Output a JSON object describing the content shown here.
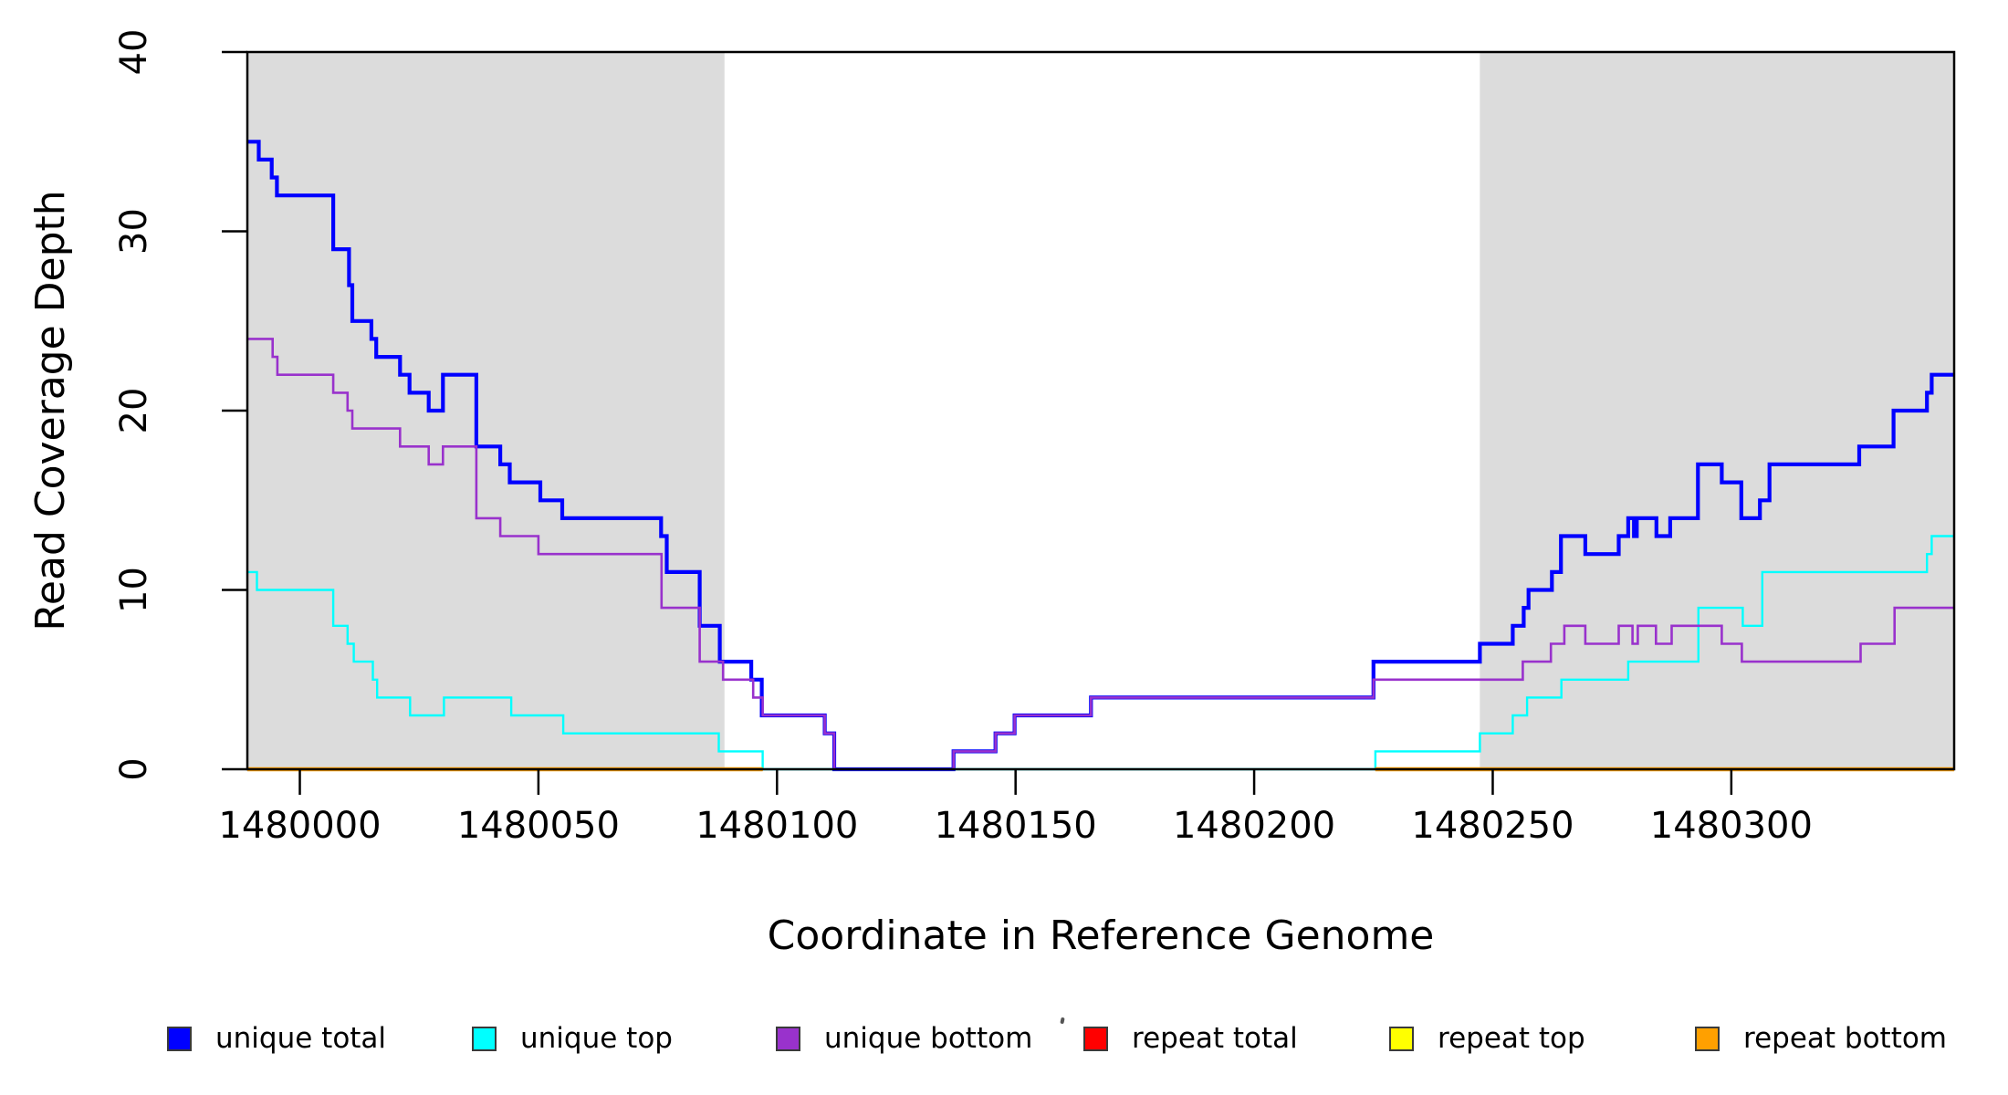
{
  "figure": {
    "background": "#ffffff",
    "shade_color": "#dcdcdc",
    "box_color": "#000000"
  },
  "axes": {
    "x_title": "Coordinate in Reference Genome",
    "y_title": "Read Coverage Depth",
    "x_ticks": [
      1480000,
      1480050,
      1480100,
      1480150,
      1480200,
      1480250,
      1480300
    ],
    "y_ticks": [
      0,
      10,
      20,
      30,
      40
    ],
    "xlim": [
      1479989,
      1480346.7
    ],
    "ylim": [
      0,
      40
    ]
  },
  "legend": {
    "items": [
      {
        "label": "unique total",
        "color": "#0000ff"
      },
      {
        "label": "unique top",
        "color": "#00ffff"
      },
      {
        "label": "unique bottom",
        "color": "#9932cc"
      },
      {
        "label": "repeat total",
        "color": "#ff0000"
      },
      {
        "label": "repeat top",
        "color": "#ffff00"
      },
      {
        "label": "repeat bottom",
        "color": "#ffa000"
      }
    ]
  },
  "chart_data": {
    "type": "line",
    "subtype": "step",
    "title": "",
    "xlabel": "Coordinate in Reference Genome",
    "ylabel": "Read Coverage Depth",
    "xlim": [
      1479989,
      1480346.7
    ],
    "ylim": [
      0,
      40
    ],
    "grid": false,
    "legend_position": "bottom",
    "shaded_regions": [
      {
        "x0": 1479989,
        "x1": 1480089,
        "color": "#dcdcdc"
      },
      {
        "x0": 1480247.3,
        "x1": 1480346.7,
        "color": "#dcdcdc"
      }
    ],
    "series": [
      {
        "name": "unique total",
        "color": "#0000ff",
        "width": 4.2,
        "steps": [
          [
            1479989,
            35
          ],
          [
            1479991.4,
            34
          ],
          [
            1479994.1,
            33
          ],
          [
            1479995.2,
            32
          ],
          [
            1480007,
            29
          ],
          [
            1480010.3,
            27
          ],
          [
            1480011,
            25
          ],
          [
            1480015,
            24
          ],
          [
            1480016,
            23
          ],
          [
            1480021,
            22
          ],
          [
            1480023,
            21
          ],
          [
            1480027,
            20
          ],
          [
            1480030,
            22
          ],
          [
            1480037,
            18
          ],
          [
            1480042,
            17
          ],
          [
            1480044,
            16
          ],
          [
            1480050.4,
            15
          ],
          [
            1480055,
            14
          ],
          [
            1480075.7,
            13
          ],
          [
            1480076.9,
            11
          ],
          [
            1480083.8,
            8
          ],
          [
            1480088,
            6
          ],
          [
            1480094.6,
            5
          ],
          [
            1480096.8,
            3
          ],
          [
            1480110,
            2
          ],
          [
            1480112,
            0
          ],
          [
            1480137,
            1
          ],
          [
            1480145.8,
            2
          ],
          [
            1480149.8,
            3
          ],
          [
            1480165.8,
            4
          ],
          [
            1480225,
            6
          ],
          [
            1480247.3,
            7
          ],
          [
            1480254.2,
            8
          ],
          [
            1480256.5,
            9
          ],
          [
            1480257.5,
            10
          ],
          [
            1480262.4,
            11
          ],
          [
            1480264.3,
            13
          ],
          [
            1480269.4,
            12
          ],
          [
            1480276.4,
            13
          ],
          [
            1480278.4,
            14
          ],
          [
            1480279.6,
            13
          ],
          [
            1480280.2,
            14
          ],
          [
            1480284.3,
            13
          ],
          [
            1480287.2,
            14
          ],
          [
            1480293,
            17
          ],
          [
            1480298,
            16
          ],
          [
            1480302.1,
            14
          ],
          [
            1480306,
            15
          ],
          [
            1480308,
            17
          ],
          [
            1480326.8,
            18
          ],
          [
            1480334,
            20
          ],
          [
            1480341,
            21
          ],
          [
            1480342,
            22
          ]
        ]
      },
      {
        "name": "unique top",
        "color": "#00ffff",
        "width": 2.4,
        "steps": [
          [
            1479989,
            11
          ],
          [
            1479991,
            10
          ],
          [
            1480007,
            8
          ],
          [
            1480010,
            7
          ],
          [
            1480011.3,
            6
          ],
          [
            1480015.3,
            5
          ],
          [
            1480016.2,
            4
          ],
          [
            1480023.1,
            3
          ],
          [
            1480030.2,
            4
          ],
          [
            1480044.3,
            3
          ],
          [
            1480055.2,
            2
          ],
          [
            1480087.8,
            1
          ],
          [
            1480097,
            0
          ],
          [
            1480225.4,
            1
          ],
          [
            1480247.3,
            2
          ],
          [
            1480254.2,
            3
          ],
          [
            1480257.2,
            4
          ],
          [
            1480264.4,
            5
          ],
          [
            1480278.4,
            6
          ],
          [
            1480293.1,
            9
          ],
          [
            1480302.4,
            8
          ],
          [
            1480306.5,
            11
          ],
          [
            1480341,
            12
          ],
          [
            1480342,
            13
          ]
        ]
      },
      {
        "name": "unique bottom",
        "color": "#9932cc",
        "width": 2.6,
        "steps": [
          [
            1479989,
            24
          ],
          [
            1479994.3,
            23
          ],
          [
            1479995.3,
            22
          ],
          [
            1480007,
            21
          ],
          [
            1480010,
            20
          ],
          [
            1480011,
            19
          ],
          [
            1480021,
            18
          ],
          [
            1480027,
            17
          ],
          [
            1480030,
            18
          ],
          [
            1480037,
            14
          ],
          [
            1480042,
            13
          ],
          [
            1480050,
            12
          ],
          [
            1480075.8,
            9
          ],
          [
            1480083.8,
            6
          ],
          [
            1480088.7,
            5
          ],
          [
            1480095,
            4
          ],
          [
            1480097,
            3
          ],
          [
            1480110,
            2
          ],
          [
            1480112,
            0
          ],
          [
            1480137,
            1
          ],
          [
            1480145.8,
            2
          ],
          [
            1480149.8,
            3
          ],
          [
            1480165.8,
            4
          ],
          [
            1480225,
            5
          ],
          [
            1480256.3,
            6
          ],
          [
            1480262.2,
            7
          ],
          [
            1480265,
            8
          ],
          [
            1480269.4,
            7
          ],
          [
            1480276.4,
            8
          ],
          [
            1480279.3,
            7
          ],
          [
            1480280.4,
            8
          ],
          [
            1480284.2,
            7
          ],
          [
            1480287.5,
            8
          ],
          [
            1480298,
            7
          ],
          [
            1480302.2,
            6
          ],
          [
            1480327.1,
            7
          ],
          [
            1480334.2,
            9
          ]
        ]
      },
      {
        "name": "repeat total",
        "color": "#ff0000",
        "width": 4.0,
        "segments": [
          {
            "x0": 1479989,
            "x1": 1480097,
            "y": 0
          },
          {
            "x0": 1480225.4,
            "x1": 1480346.7,
            "y": 0
          }
        ]
      },
      {
        "name": "repeat top",
        "color": "#ffff00",
        "width": 4.0,
        "segments": [
          {
            "x0": 1479989,
            "x1": 1480097,
            "y": 0
          },
          {
            "x0": 1480225.4,
            "x1": 1480346.7,
            "y": 0
          }
        ]
      },
      {
        "name": "repeat bottom",
        "color": "#ffa000",
        "width": 4.5,
        "segments": [
          {
            "x0": 1479989,
            "x1": 1480097,
            "y": 0
          },
          {
            "x0": 1480225.4,
            "x1": 1480346.7,
            "y": 0
          }
        ]
      }
    ]
  }
}
